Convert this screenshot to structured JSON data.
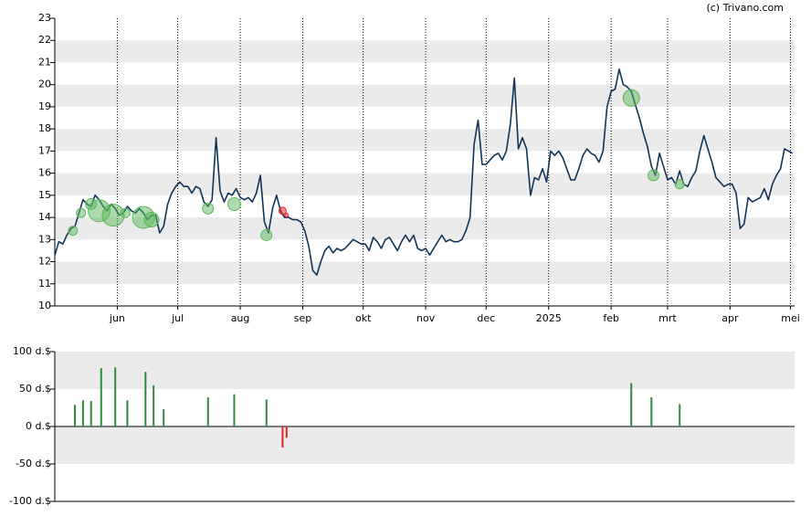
{
  "watermark": "(c) Trivano.com",
  "chart_data": [
    {
      "type": "line",
      "xlim": [
        0,
        367
      ],
      "xticks": [
        {
          "value": 31,
          "label": "jun"
        },
        {
          "value": 61,
          "label": "jul"
        },
        {
          "value": 92,
          "label": "aug"
        },
        {
          "value": 123,
          "label": "sep"
        },
        {
          "value": 153,
          "label": "okt"
        },
        {
          "value": 184,
          "label": "nov"
        },
        {
          "value": 214,
          "label": "dec"
        },
        {
          "value": 245,
          "label": "2025"
        },
        {
          "value": 276,
          "label": "feb"
        },
        {
          "value": 304,
          "label": "mrt"
        },
        {
          "value": 335,
          "label": "apr"
        },
        {
          "value": 365,
          "label": "mei"
        }
      ],
      "ylim": [
        10,
        23
      ],
      "yticks": [
        10,
        11,
        12,
        13,
        14,
        15,
        16,
        17,
        18,
        19,
        20,
        21,
        22,
        23
      ],
      "grid": true,
      "color": "#123456",
      "x": [
        0,
        2,
        4,
        6,
        8,
        10,
        12,
        14,
        16,
        18,
        20,
        22,
        24,
        26,
        28,
        30,
        32,
        34,
        36,
        38,
        40,
        42,
        44,
        46,
        48,
        50,
        52,
        54,
        56,
        58,
        60,
        62,
        64,
        66,
        68,
        70,
        72,
        74,
        76,
        78,
        80,
        82,
        84,
        86,
        88,
        90,
        92,
        94,
        96,
        98,
        100,
        102,
        104,
        106,
        108,
        110,
        112,
        114,
        116,
        118,
        120,
        122,
        124,
        126,
        128,
        130,
        132,
        134,
        136,
        138,
        140,
        142,
        144,
        146,
        148,
        150,
        152,
        154,
        156,
        158,
        160,
        162,
        164,
        166,
        168,
        170,
        172,
        174,
        176,
        178,
        180,
        182,
        184,
        186,
        188,
        190,
        192,
        194,
        196,
        198,
        200,
        202,
        204,
        206,
        208,
        210,
        212,
        214,
        216,
        218,
        220,
        222,
        224,
        226,
        228,
        230,
        232,
        234,
        236,
        238,
        240,
        242,
        244,
        246,
        248,
        250,
        252,
        254,
        256,
        258,
        260,
        262,
        264,
        266,
        268,
        270,
        272,
        274,
        276,
        278,
        280,
        282,
        284,
        286,
        288,
        290,
        292,
        294,
        296,
        298,
        300,
        302,
        304,
        306,
        308,
        310,
        312,
        314,
        316,
        318,
        320,
        322,
        324,
        326,
        328,
        330,
        332,
        334,
        336,
        338,
        340,
        342,
        344,
        346,
        348,
        350,
        352,
        354,
        356,
        358,
        360,
        362,
        364,
        366
      ],
      "values": [
        12.3,
        12.9,
        12.8,
        13.2,
        13.5,
        13.6,
        14.2,
        14.8,
        14.6,
        14.5,
        15.0,
        14.8,
        14.5,
        14.3,
        14.6,
        14.4,
        14.1,
        14.2,
        14.5,
        14.3,
        14.2,
        14.4,
        14.2,
        13.9,
        14.1,
        14.1,
        13.3,
        13.6,
        14.6,
        15.1,
        15.4,
        15.6,
        15.4,
        15.4,
        15.1,
        15.4,
        15.3,
        14.7,
        14.5,
        14.8,
        17.6,
        15.2,
        14.7,
        15.1,
        15.0,
        15.3,
        14.9,
        14.8,
        14.9,
        14.7,
        15.1,
        15.9,
        13.8,
        13.3,
        14.4,
        15.0,
        14.3,
        14.0,
        14.0,
        13.9,
        13.9,
        13.8,
        13.4,
        12.7,
        11.6,
        11.4,
        12.0,
        12.5,
        12.7,
        12.4,
        12.6,
        12.5,
        12.6,
        12.8,
        13.0,
        12.9,
        12.8,
        12.8,
        12.5,
        13.1,
        12.9,
        12.6,
        13.0,
        13.1,
        12.8,
        12.5,
        12.9,
        13.2,
        12.9,
        13.2,
        12.6,
        12.5,
        12.6,
        12.3,
        12.6,
        12.9,
        13.2,
        12.9,
        13.0,
        12.9,
        12.9,
        13.0,
        13.4,
        14.0,
        17.3,
        18.4,
        16.4,
        16.4,
        16.6,
        16.8,
        16.9,
        16.6,
        17.0,
        18.2,
        20.3,
        17.1,
        17.6,
        17.1,
        15.0,
        15.8,
        15.7,
        16.2,
        15.6,
        17.0,
        16.8,
        17.0,
        16.7,
        16.2,
        15.7,
        15.7,
        16.2,
        16.8,
        17.1,
        16.9,
        16.8,
        16.5,
        17.0,
        19.0,
        19.7,
        19.8,
        20.7,
        20.0,
        19.9,
        19.7,
        19.1,
        18.5,
        17.8,
        17.2,
        16.3,
        15.9,
        16.9,
        16.3,
        15.7,
        15.8,
        15.5,
        16.1,
        15.5,
        15.4,
        15.8,
        16.1,
        17.0,
        17.7,
        17.1,
        16.5,
        15.8,
        15.6,
        15.4,
        15.5,
        15.5,
        15.1,
        13.5,
        13.7,
        14.9,
        14.7,
        14.8,
        14.9,
        15.3,
        14.8,
        15.5,
        15.9,
        16.2,
        17.1,
        17.0,
        16.9
      ],
      "bubbles": {
        "x": [
          9,
          13,
          18,
          22,
          29,
          35,
          44,
          48,
          76,
          89,
          105,
          113,
          115,
          286,
          297,
          310
        ],
        "values": [
          13.4,
          14.2,
          14.6,
          14.3,
          14.1,
          14.2,
          14.0,
          13.9,
          14.4,
          14.6,
          13.2,
          14.3,
          14.1,
          19.4,
          15.9,
          15.5
        ],
        "sizes": [
          5,
          5,
          6,
          12,
          12,
          5,
          12,
          8,
          6,
          7,
          6,
          4,
          2,
          9,
          6,
          5
        ],
        "colors": [
          "#5cb85c",
          "#5cb85c",
          "#5cb85c",
          "#5cb85c",
          "#5cb85c",
          "#5cb85c",
          "#5cb85c",
          "#5cb85c",
          "#5cb85c",
          "#5cb85c",
          "#5cb85c",
          "#e8202a",
          "#e8202a",
          "#5cb85c",
          "#5cb85c",
          "#5cb85c"
        ]
      }
    },
    {
      "type": "bar",
      "xlim": [
        0,
        367
      ],
      "ylim": [
        -100,
        100
      ],
      "yticks": [
        {
          "value": -100,
          "label": "-100 d.$"
        },
        {
          "value": -50,
          "label": "-50 d.$"
        },
        {
          "value": 0,
          "label": "0 d.$"
        },
        {
          "value": 50,
          "label": "50 d.$"
        },
        {
          "value": 100,
          "label": "100 d.$"
        }
      ],
      "grid": true,
      "color": "#2e8b3e",
      "negative_color": "#e8202a",
      "x": [
        10,
        14,
        18,
        23,
        30,
        36,
        45,
        49,
        54,
        76,
        89,
        105,
        113,
        115,
        286,
        296,
        310
      ],
      "values": [
        29,
        35,
        34,
        78,
        79,
        35,
        73,
        55,
        23,
        39,
        43,
        36,
        -28,
        -15,
        58,
        39,
        30
      ]
    }
  ]
}
